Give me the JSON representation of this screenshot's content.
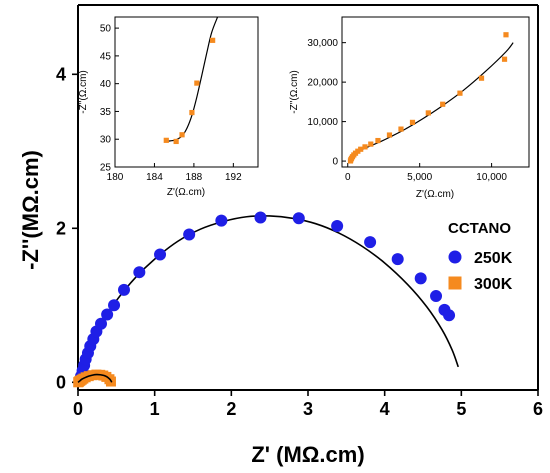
{
  "chart_data": [
    {
      "type": "scatter",
      "role": "main",
      "xlabel": "Z' (MΩ.cm)",
      "ylabel": "-Z''(MΩ.cm)",
      "xlim": [
        0,
        6
      ],
      "ylim": [
        -0.1,
        4.9
      ],
      "xticks": [
        "0",
        "1",
        "2",
        "3",
        "4",
        "5",
        "6"
      ],
      "yticks": [
        "0",
        "2",
        "4"
      ],
      "grid": false,
      "legend": {
        "title": "CCTANO",
        "placement": "right",
        "entries": [
          "250K",
          "300K"
        ]
      },
      "series": [
        {
          "name": "250K",
          "marker": "circle",
          "color": "#1f1fe6",
          "x": [
            0.02,
            0.04,
            0.06,
            0.08,
            0.1,
            0.13,
            0.16,
            0.2,
            0.24,
            0.3,
            0.38,
            0.47,
            0.6,
            0.8,
            1.07,
            1.45,
            1.87,
            2.38,
            2.88,
            3.38,
            3.81,
            4.17,
            4.47,
            4.67,
            4.78,
            4.84
          ],
          "y": [
            0.02,
            0.08,
            0.15,
            0.22,
            0.3,
            0.38,
            0.47,
            0.56,
            0.66,
            0.76,
            0.88,
            1.0,
            1.2,
            1.43,
            1.66,
            1.92,
            2.1,
            2.14,
            2.13,
            2.03,
            1.82,
            1.6,
            1.35,
            1.12,
            0.94,
            0.87
          ]
        },
        {
          "name": "300K",
          "marker": "square",
          "color": "#f58a1f",
          "x": [
            0.003,
            0.007,
            0.011,
            0.016,
            0.024,
            0.035,
            0.05,
            0.07,
            0.1,
            0.14,
            0.19,
            0.24,
            0.29,
            0.33,
            0.37,
            0.41,
            0.43
          ],
          "y": [
            0.0,
            0.004,
            0.008,
            0.013,
            0.018,
            0.025,
            0.035,
            0.048,
            0.065,
            0.08,
            0.092,
            0.1,
            0.097,
            0.088,
            0.07,
            0.04,
            0.01
          ]
        }
      ],
      "fits": [
        {
          "name": "250K fit",
          "x": [
            0.0,
            0.05,
            0.1,
            0.2,
            0.35,
            0.5,
            0.75,
            1.0,
            1.3,
            1.6,
            1.9,
            2.2,
            2.5,
            2.8,
            3.1,
            3.4,
            3.7,
            4.0,
            4.3,
            4.55,
            4.75,
            4.88,
            4.96
          ],
          "y": [
            0.0,
            0.14,
            0.28,
            0.52,
            0.82,
            1.06,
            1.36,
            1.6,
            1.83,
            1.99,
            2.09,
            2.15,
            2.16,
            2.13,
            2.06,
            1.94,
            1.77,
            1.55,
            1.27,
            0.98,
            0.68,
            0.42,
            0.2
          ]
        },
        {
          "name": "300K fit",
          "x": [
            0.0,
            0.02,
            0.05,
            0.09,
            0.14,
            0.19,
            0.24,
            0.29,
            0.34,
            0.38,
            0.41,
            0.43,
            0.44
          ],
          "y": [
            0.0,
            0.015,
            0.04,
            0.06,
            0.08,
            0.093,
            0.1,
            0.098,
            0.088,
            0.07,
            0.045,
            0.02,
            0.0
          ]
        }
      ]
    },
    {
      "type": "scatter",
      "role": "inset-left",
      "xlabel": "Z'(Ω.cm)",
      "ylabel": "-Z''(Ω.cm)",
      "xlim": [
        180,
        194.5
      ],
      "ylim": [
        25,
        52
      ],
      "xticks": [
        "180",
        "184",
        "188",
        "192"
      ],
      "yticks": [
        "25",
        "30",
        "35",
        "40",
        "45",
        "50"
      ],
      "series": [
        {
          "name": "300K",
          "marker": "square",
          "color": "#f58a1f",
          "x": [
            185.2,
            186.2,
            186.8,
            187.8,
            188.3,
            189.9
          ],
          "y": [
            29.8,
            29.6,
            30.8,
            34.8,
            40.1,
            47.8
          ]
        }
      ],
      "fit": {
        "x": [
          185.0,
          185.6,
          186.2,
          186.8,
          187.3,
          187.8,
          188.3,
          188.8,
          189.3,
          189.8,
          190.4
        ],
        "y": [
          29.6,
          29.7,
          29.9,
          30.6,
          32.0,
          34.3,
          37.6,
          41.5,
          45.5,
          49.2,
          53.0
        ]
      }
    },
    {
      "type": "scatter",
      "role": "inset-right",
      "xlabel": "Z'(Ω.cm)",
      "ylabel": "-Z''(Ω.cm)",
      "xlim": [
        -400,
        12600
      ],
      "ylim": [
        -1500,
        36500
      ],
      "xticks": [
        "0",
        "5,000",
        "10,000"
      ],
      "yticks": [
        "0",
        "10,000",
        "20,000",
        "30,000"
      ],
      "series": [
        {
          "name": "300K",
          "marker": "square",
          "color": "#f58a1f",
          "x": [
            190,
            215,
            260,
            330,
            420,
            540,
            700,
            900,
            1200,
            1600,
            2100,
            2900,
            3700,
            4500,
            5600,
            6600,
            7800,
            9300,
            10900
          ],
          "y": [
            35,
            350,
            700,
            1100,
            1550,
            2000,
            2500,
            3000,
            3600,
            4300,
            5200,
            6600,
            8100,
            9800,
            12200,
            14400,
            17200,
            21000,
            25800
          ]
        }
      ],
      "extra_points": {
        "x": [
          11000
        ],
        "y": [
          32000
        ]
      },
      "fit": {
        "x": [
          185,
          210,
          270,
          380,
          550,
          800,
          1150,
          1600,
          2200,
          3000,
          4000,
          5200,
          6500,
          8000,
          9600,
          11000,
          11500
        ],
        "y": [
          0,
          420,
          850,
          1350,
          1900,
          2500,
          3150,
          3900,
          4800,
          6200,
          8100,
          10700,
          13800,
          17800,
          22800,
          27700,
          30000
        ]
      }
    }
  ]
}
